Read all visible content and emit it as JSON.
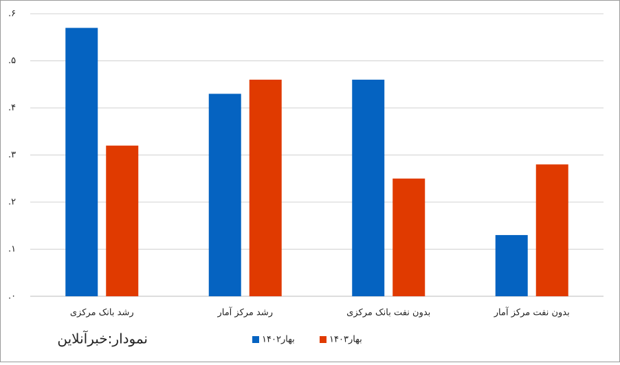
{
  "chart_data": {
    "type": "bar",
    "categories": [
      "رشد بانک مرکزی",
      "رشد مرکز آمار",
      "بدون نفت بانک مرکزی",
      "بدون نفت مرکز آمار"
    ],
    "series": [
      {
        "name": "بهار۱۴۰۲",
        "color": "#0563c1",
        "values": [
          0.57,
          0.43,
          0.46,
          0.13
        ]
      },
      {
        "name": "بهار۱۴۰۳",
        "color": "#e03a00",
        "values": [
          0.32,
          0.46,
          0.25,
          0.28
        ]
      }
    ],
    "ylim": [
      0,
      0.6
    ],
    "yticks": [
      {
        "value": 0,
        "label": ".۰"
      },
      {
        "value": 0.1,
        "label": ".۱"
      },
      {
        "value": 0.2,
        "label": ".۲"
      },
      {
        "value": 0.3,
        "label": ".۳"
      },
      {
        "value": 0.4,
        "label": ".۴"
      },
      {
        "value": 0.5,
        "label": ".۵"
      },
      {
        "value": 0.6,
        "label": ".۶"
      }
    ],
    "grid": true,
    "annotation": "نمودار:خبرآنلاین"
  }
}
